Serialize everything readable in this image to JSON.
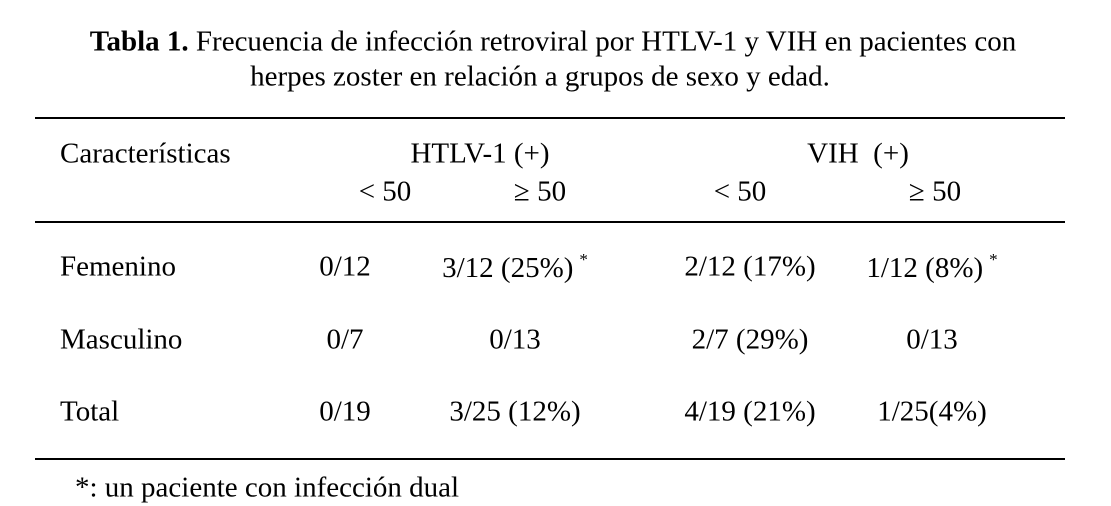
{
  "title": {
    "label": "Tabla 1.",
    "lines": [
      "Frecuencia de infección retroviral por HTLV-1 y VIH en pacientes con",
      "herpes zoster en relación a grupos de sexo y edad."
    ]
  },
  "table": {
    "header": {
      "first": "Características",
      "groups": [
        {
          "name": "HTLV-1 (+)",
          "sub": [
            "< 50",
            "≥ 50"
          ]
        },
        {
          "name": "VIH  (+)",
          "sub": [
            "< 50",
            "≥ 50"
          ]
        }
      ]
    },
    "rows": [
      {
        "label": "Femenino",
        "cells": [
          {
            "text": "0/12"
          },
          {
            "text": "3/12 (25%)",
            "mark": "*"
          },
          {
            "text": "2/12 (17%)"
          },
          {
            "text": "1/12 (8%)",
            "mark": "*"
          }
        ]
      },
      {
        "label": "Masculino",
        "cells": [
          {
            "text": "0/7"
          },
          {
            "text": "0/13"
          },
          {
            "text": "2/7 (29%)"
          },
          {
            "text": "0/13"
          }
        ]
      },
      {
        "label": "Total",
        "cells": [
          {
            "text": "0/19"
          },
          {
            "text": "3/25 (12%)"
          },
          {
            "text": "4/19 (21%)"
          },
          {
            "text": "1/25(4%)"
          }
        ]
      }
    ]
  },
  "footnote": "*: un paciente con infección dual"
}
